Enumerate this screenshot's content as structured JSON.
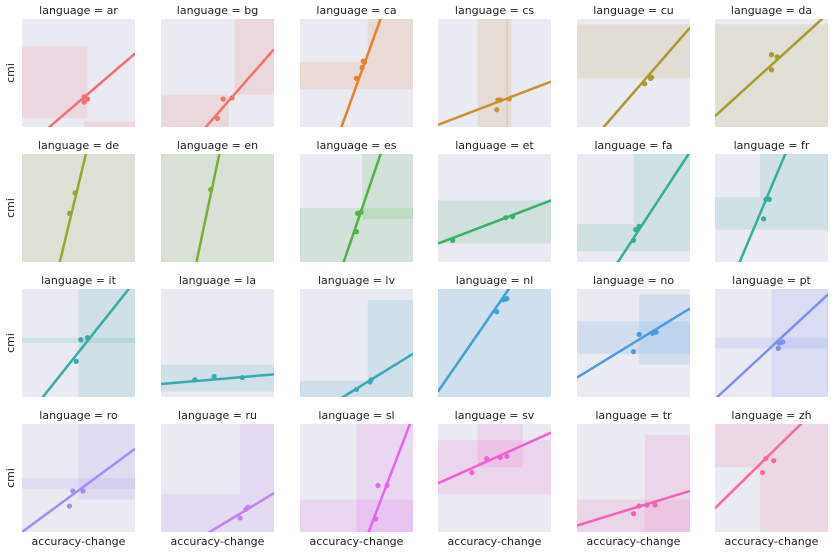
{
  "xlabel": "accuracy-change",
  "ylabel": "cmi",
  "title_prefix": "language = ",
  "chart_data": [
    {
      "type": "scatter",
      "title": "language = ar",
      "color": "#ef6f78",
      "points": [
        [
          0.55,
          0.23
        ],
        [
          0.58,
          0.26
        ],
        [
          0.55,
          0.28
        ]
      ],
      "line": [
        [
          0.22,
          -0.02
        ],
        [
          1.0,
          0.68
        ]
      ],
      "band": [
        [
          0.0,
          0.08,
          0.58,
          0.75
        ],
        [
          0.0,
          0.0,
          0.0,
          0.2
        ],
        [
          0.55,
          0.0,
          1.0,
          0.05
        ]
      ]
    },
    {
      "type": "scatter",
      "title": "language = bg",
      "color": "#ef7468",
      "points": [
        [
          0.5,
          0.08
        ],
        [
          0.55,
          0.26
        ],
        [
          0.63,
          0.27
        ]
      ],
      "line": [
        [
          0.38,
          -0.02
        ],
        [
          1.0,
          0.72
        ]
      ],
      "band": [
        [
          0.0,
          0.0,
          0.6,
          0.3
        ],
        [
          0.65,
          0.3,
          1.0,
          1.0
        ]
      ]
    },
    {
      "type": "scatter",
      "title": "language = ca",
      "color": "#e5802e",
      "points": [
        [
          0.5,
          0.45
        ],
        [
          0.55,
          0.55
        ],
        [
          0.56,
          0.61
        ],
        [
          0.57,
          0.6
        ]
      ],
      "line": [
        [
          0.36,
          -0.02
        ],
        [
          0.72,
          1.02
        ]
      ],
      "band": [
        [
          0.0,
          0.35,
          1.0,
          0.6
        ],
        [
          0.6,
          0.6,
          1.0,
          1.0
        ]
      ]
    },
    {
      "type": "scatter",
      "title": "language = cs",
      "color": "#c98f33",
      "points": [
        [
          0.52,
          0.16
        ],
        [
          0.53,
          0.25
        ],
        [
          0.55,
          0.25
        ],
        [
          0.63,
          0.26
        ]
      ],
      "line": [
        [
          0.0,
          0.02
        ],
        [
          1.0,
          0.42
        ]
      ],
      "band": [
        [
          0.6,
          0.0,
          0.65,
          1.0
        ],
        [
          0.35,
          0.0,
          0.62,
          1.0
        ]
      ]
    },
    {
      "type": "scatter",
      "title": "language = cu",
      "color": "#ad9630",
      "points": [
        [
          0.6,
          0.4
        ],
        [
          0.65,
          0.45
        ],
        [
          0.66,
          0.46
        ]
      ],
      "line": [
        [
          0.22,
          -0.02
        ],
        [
          1.0,
          0.92
        ]
      ],
      "band": [
        [
          0.0,
          0.45,
          1.0,
          0.95
        ]
      ]
    },
    {
      "type": "scatter",
      "title": "language = da",
      "color": "#a89a2f",
      "points": [
        [
          0.5,
          0.53
        ],
        [
          0.5,
          0.67
        ],
        [
          0.55,
          0.65
        ]
      ],
      "line": [
        [
          0.0,
          0.1
        ],
        [
          1.0,
          1.05
        ]
      ],
      "band": [
        [
          0.0,
          0.0,
          1.0,
          0.95
        ]
      ]
    },
    {
      "type": "scatter",
      "title": "language = de",
      "color": "#97a72f",
      "points": [
        [
          0.42,
          0.45
        ],
        [
          0.47,
          0.64
        ]
      ],
      "line": [
        [
          0.33,
          -0.02
        ],
        [
          0.57,
          1.02
        ]
      ],
      "band": [
        [
          0.0,
          0.0,
          1.0,
          1.0
        ]
      ]
    },
    {
      "type": "scatter",
      "title": "language = en",
      "color": "#78ae33",
      "points": [
        [
          0.44,
          0.67
        ]
      ],
      "line": [
        [
          0.31,
          -0.02
        ],
        [
          0.52,
          1.02
        ]
      ],
      "band": [
        [
          0.0,
          0.0,
          1.0,
          1.0
        ]
      ]
    },
    {
      "type": "scatter",
      "title": "language = es",
      "color": "#4db344",
      "points": [
        [
          0.5,
          0.28
        ],
        [
          0.51,
          0.45
        ],
        [
          0.54,
          0.46
        ]
      ],
      "line": [
        [
          0.38,
          -0.02
        ],
        [
          0.72,
          1.02
        ]
      ],
      "band": [
        [
          0.0,
          0.0,
          1.0,
          0.5
        ],
        [
          0.55,
          0.4,
          1.0,
          1.0
        ]
      ]
    },
    {
      "type": "scatter",
      "title": "language = et",
      "color": "#3ab066",
      "points": [
        [
          0.13,
          0.2
        ],
        [
          0.6,
          0.41
        ],
        [
          0.66,
          0.42
        ]
      ],
      "line": [
        [
          0.0,
          0.17
        ],
        [
          1.0,
          0.57
        ]
      ],
      "band": [
        [
          0.0,
          0.17,
          1.0,
          0.57
        ]
      ]
    },
    {
      "type": "scatter",
      "title": "language = fa",
      "color": "#37ad8c",
      "points": [
        [
          0.5,
          0.2
        ],
        [
          0.52,
          0.3
        ],
        [
          0.55,
          0.33
        ]
      ],
      "line": [
        [
          0.35,
          -0.02
        ],
        [
          1.0,
          1.02
        ]
      ],
      "band": [
        [
          0.0,
          0.1,
          1.0,
          0.35
        ],
        [
          0.5,
          0.35,
          1.0,
          1.0
        ]
      ]
    },
    {
      "type": "scatter",
      "title": "language = fr",
      "color": "#35ad9a",
      "points": [
        [
          0.43,
          0.4
        ],
        [
          0.45,
          0.58
        ],
        [
          0.48,
          0.58
        ]
      ],
      "line": [
        [
          0.21,
          -0.02
        ],
        [
          0.63,
          1.02
        ]
      ],
      "band": [
        [
          0.0,
          0.3,
          1.0,
          0.6
        ],
        [
          0.4,
          0.6,
          1.0,
          1.0
        ]
      ]
    },
    {
      "type": "scatter",
      "title": "language = it",
      "color": "#38aba6",
      "points": [
        [
          0.48,
          0.33
        ],
        [
          0.52,
          0.53
        ],
        [
          0.58,
          0.55
        ]
      ],
      "line": [
        [
          0.17,
          -0.02
        ],
        [
          0.96,
          1.02
        ]
      ],
      "band": [
        [
          0.0,
          0.5,
          1.0,
          0.55
        ],
        [
          0.5,
          0.0,
          1.0,
          1.0
        ]
      ]
    },
    {
      "type": "scatter",
      "title": "language = la",
      "color": "#38a9af",
      "points": [
        [
          0.3,
          0.16
        ],
        [
          0.47,
          0.19
        ],
        [
          0.72,
          0.18
        ]
      ],
      "line": [
        [
          0.0,
          0.12
        ],
        [
          1.0,
          0.21
        ]
      ],
      "band": [
        [
          0.0,
          0.05,
          1.0,
          0.3
        ]
      ]
    },
    {
      "type": "scatter",
      "title": "language = lv",
      "color": "#39a7b9",
      "points": [
        [
          0.5,
          0.07
        ],
        [
          0.63,
          0.16
        ],
        [
          0.62,
          0.14
        ]
      ],
      "line": [
        [
          0.35,
          -0.02
        ],
        [
          1.0,
          0.4
        ]
      ],
      "band": [
        [
          0.0,
          0.0,
          1.0,
          0.15
        ],
        [
          0.6,
          0.15,
          1.0,
          0.9
        ]
      ]
    },
    {
      "type": "scatter",
      "title": "language = nl",
      "color": "#3fa1cf",
      "points": [
        [
          0.52,
          0.79
        ],
        [
          0.58,
          0.9
        ],
        [
          0.6,
          0.91
        ],
        [
          0.61,
          0.91
        ]
      ],
      "line": [
        [
          0.0,
          0.05
        ],
        [
          0.64,
          1.02
        ]
      ],
      "band": [
        [
          0.0,
          0.0,
          1.0,
          1.0
        ]
      ]
    },
    {
      "type": "scatter",
      "title": "language = no",
      "color": "#4b99e2",
      "points": [
        [
          0.5,
          0.42
        ],
        [
          0.55,
          0.58
        ],
        [
          0.67,
          0.59
        ],
        [
          0.7,
          0.6
        ]
      ],
      "line": [
        [
          0.0,
          0.18
        ],
        [
          1.0,
          0.82
        ]
      ],
      "band": [
        [
          0.0,
          0.4,
          1.0,
          0.7
        ],
        [
          0.55,
          0.3,
          1.0,
          0.95
        ]
      ]
    },
    {
      "type": "scatter",
      "title": "language = pt",
      "color": "#7b8ff0",
      "points": [
        [
          0.56,
          0.45
        ],
        [
          0.57,
          0.5
        ],
        [
          0.6,
          0.51
        ]
      ],
      "line": [
        [
          0.0,
          -0.02
        ],
        [
          1.0,
          0.95
        ]
      ],
      "band": [
        [
          0.0,
          0.45,
          1.0,
          0.55
        ],
        [
          0.5,
          0.0,
          1.0,
          1.0
        ]
      ]
    },
    {
      "type": "scatter",
      "title": "language = ro",
      "color": "#a38bf2",
      "points": [
        [
          0.42,
          0.24
        ],
        [
          0.45,
          0.38
        ],
        [
          0.54,
          0.38
        ]
      ],
      "line": [
        [
          0.0,
          0.0
        ],
        [
          1.0,
          0.77
        ]
      ],
      "band": [
        [
          0.0,
          0.4,
          1.0,
          0.5
        ],
        [
          0.5,
          0.3,
          1.0,
          1.0
        ]
      ]
    },
    {
      "type": "scatter",
      "title": "language = ru",
      "color": "#c281ee",
      "points": [
        [
          0.7,
          0.13
        ],
        [
          0.75,
          0.21
        ],
        [
          0.77,
          0.23
        ]
      ],
      "line": [
        [
          0.4,
          -0.02
        ],
        [
          1.0,
          0.36
        ]
      ],
      "band": [
        [
          0.0,
          0.0,
          1.0,
          0.35
        ],
        [
          0.7,
          0.35,
          1.0,
          1.0
        ]
      ]
    },
    {
      "type": "scatter",
      "title": "language = sl",
      "color": "#e166ec",
      "points": [
        [
          0.67,
          0.12
        ],
        [
          0.69,
          0.43
        ],
        [
          0.77,
          0.43
        ]
      ],
      "line": [
        [
          0.6,
          -0.02
        ],
        [
          0.98,
          1.02
        ]
      ],
      "band": [
        [
          0.5,
          0.0,
          1.0,
          1.0
        ],
        [
          0.0,
          0.0,
          1.0,
          0.3
        ]
      ]
    },
    {
      "type": "scatter",
      "title": "language = sv",
      "color": "#f05fd3",
      "points": [
        [
          0.3,
          0.55
        ],
        [
          0.43,
          0.68
        ],
        [
          0.55,
          0.69
        ],
        [
          0.61,
          0.7
        ]
      ],
      "line": [
        [
          0.0,
          0.45
        ],
        [
          1.0,
          0.92
        ]
      ],
      "band": [
        [
          0.0,
          0.35,
          1.0,
          0.85
        ],
        [
          0.35,
          0.6,
          0.75,
          1.0
        ]
      ]
    },
    {
      "type": "scatter",
      "title": "language = tr",
      "color": "#f462b8",
      "points": [
        [
          0.5,
          0.17
        ],
        [
          0.55,
          0.24
        ],
        [
          0.62,
          0.25
        ],
        [
          0.69,
          0.25
        ]
      ],
      "line": [
        [
          0.0,
          0.06
        ],
        [
          1.0,
          0.38
        ]
      ],
      "band": [
        [
          0.0,
          0.0,
          1.0,
          0.3
        ],
        [
          0.6,
          0.0,
          1.0,
          0.9
        ]
      ]
    },
    {
      "type": "scatter",
      "title": "language = zh",
      "color": "#f56b9c",
      "points": [
        [
          0.42,
          0.55
        ],
        [
          0.45,
          0.68
        ],
        [
          0.52,
          0.66
        ]
      ],
      "line": [
        [
          0.0,
          0.22
        ],
        [
          0.78,
          1.02
        ]
      ],
      "band": [
        [
          0.0,
          0.6,
          1.0,
          1.0
        ],
        [
          0.4,
          0.0,
          1.0,
          0.6
        ]
      ]
    }
  ]
}
